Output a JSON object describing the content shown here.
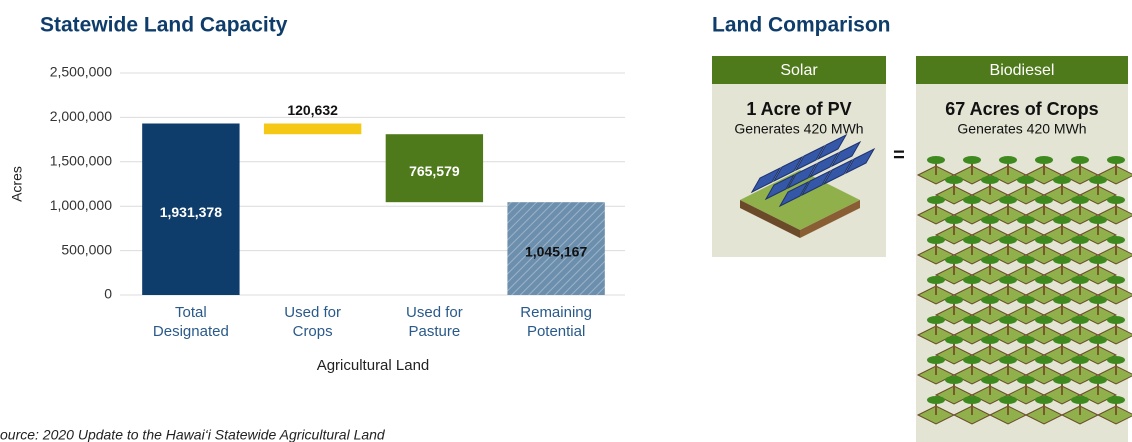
{
  "chart_data": {
    "type": "waterfall",
    "title": "Statewide Land Capacity",
    "categories": [
      "Total Designated",
      "Used for Crops",
      "Used for Pasture",
      "Remaining Potential"
    ],
    "values": [
      1931378,
      120632,
      765579,
      1045167
    ],
    "value_labels": [
      "1,931,378",
      "120,632",
      "765,579",
      "1,045,167"
    ],
    "colors": [
      "#0f3d6b",
      "#f5c816",
      "#4f7a1c",
      "#6d8fae"
    ],
    "hatched": [
      false,
      false,
      false,
      true
    ],
    "label_colors": [
      "#ffffff",
      "#111111",
      "#ffffff",
      "#111111"
    ],
    "ylim": [
      0,
      2500000
    ],
    "yticks": [
      0,
      {
        "value": 500000,
        "label": "500,000"
      },
      {
        "value": 1000000,
        "label": "1,000,000"
      },
      {
        "value": 1500000,
        "label": "1,500,000"
      },
      {
        "value": 2000000,
        "label": "2,000,000"
      },
      {
        "value": 2500000,
        "label": "2,500,000"
      }
    ],
    "grid": true,
    "xlabel": "Agricultural Land",
    "ylabel": "Acres",
    "source": "ource: 2020 Update to the Hawai‘i Statewide Agricultural Land"
  },
  "comparison": {
    "title": "Land Comparison",
    "equals": "=",
    "panels": [
      {
        "header": "Solar",
        "headline": "1 Acre of PV",
        "subtext": "Generates 420 MWh"
      },
      {
        "header": "Biodiesel",
        "headline": "67 Acres of Crops",
        "subtext": "Generates 420 MWh"
      }
    ]
  }
}
